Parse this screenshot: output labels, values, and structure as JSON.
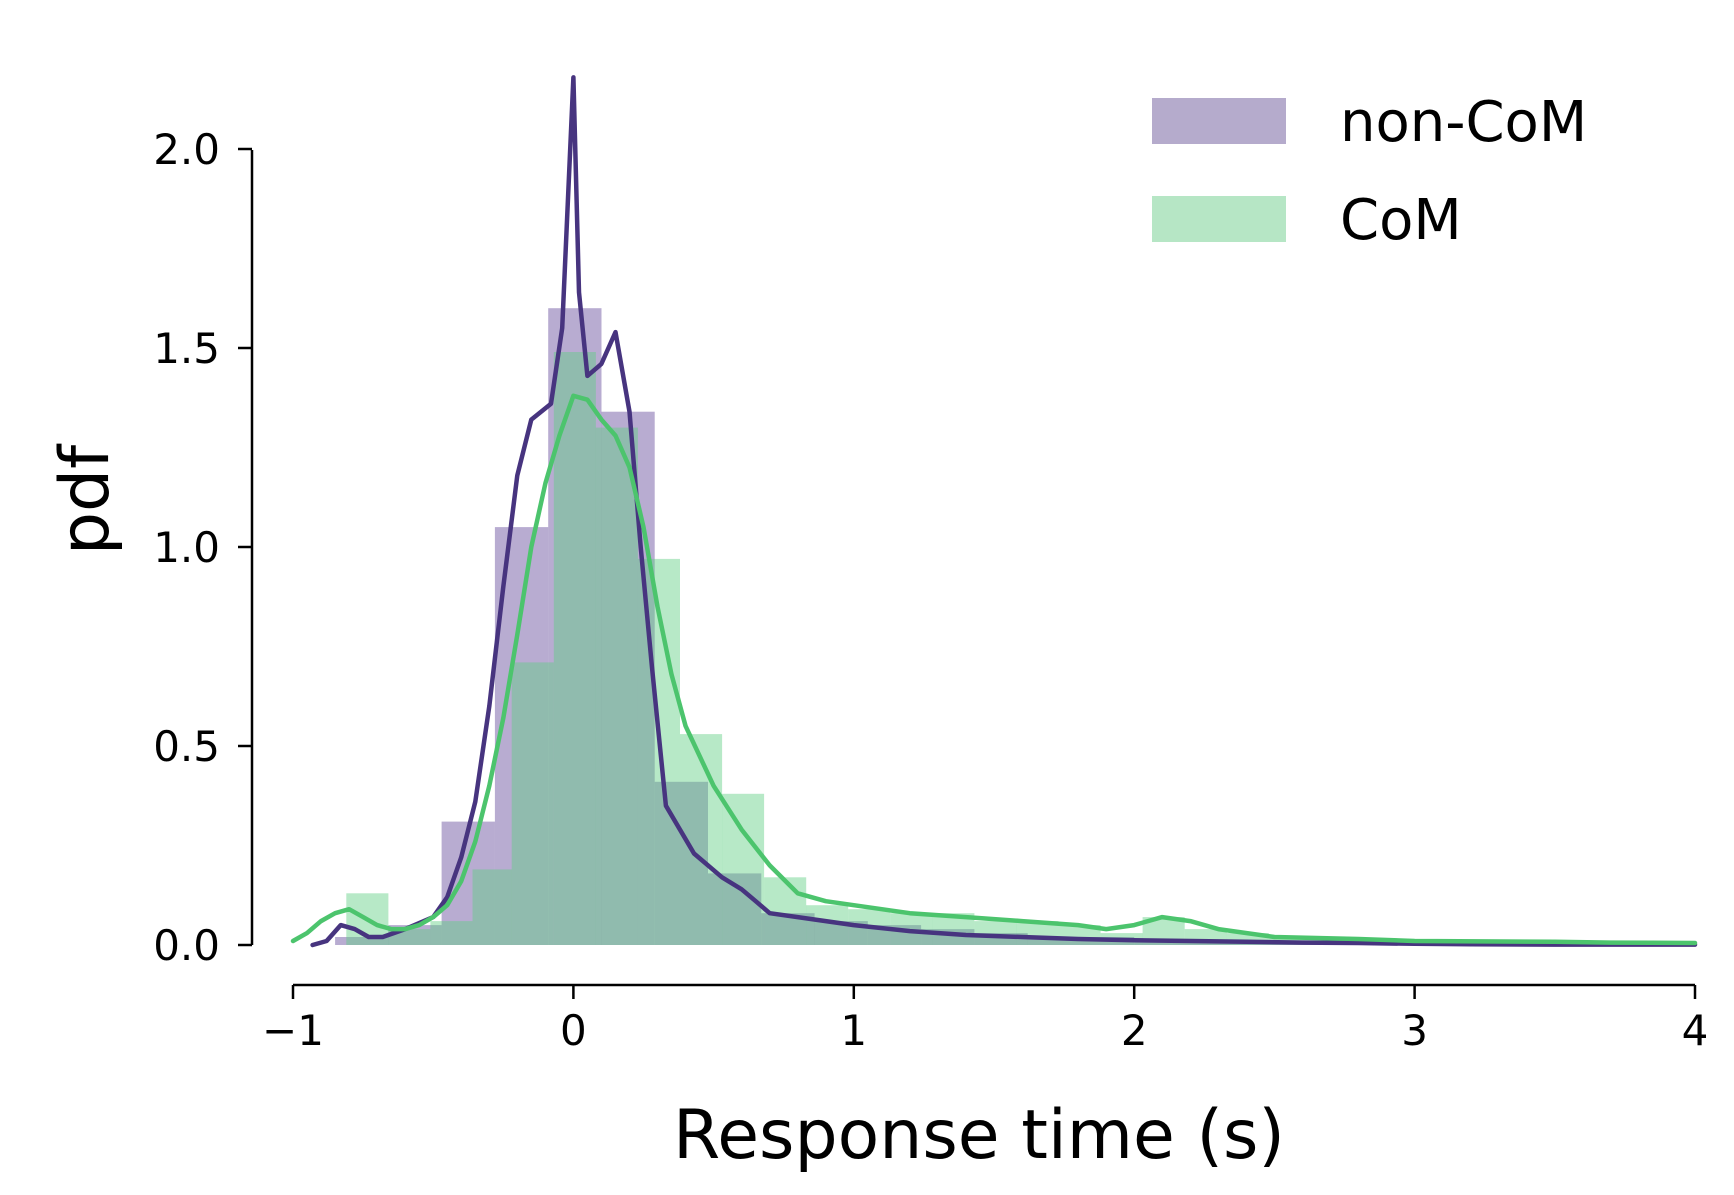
{
  "chart_data": {
    "type": "bar",
    "xlabel": "Response time (s)",
    "ylabel": "pdf",
    "xlim": [
      -1,
      4
    ],
    "ylim": [
      0,
      2.2
    ],
    "xticks": [
      -1,
      0,
      1,
      2,
      3,
      4
    ],
    "xtick_labels": [
      "−1",
      "0",
      "1",
      "2",
      "3",
      "4"
    ],
    "yticks": [
      0.0,
      0.5,
      1.0,
      1.5,
      2.0
    ],
    "ytick_labels": [
      "0.0",
      "0.5",
      "1.0",
      "1.5",
      "2.0"
    ],
    "legend_position": "top-right",
    "colors": {
      "noncom_hist": "#b5abcc",
      "com_hist": "#b6e6c5",
      "overlap_hist": "#8bb5a6",
      "noncom_line": "#47347f",
      "com_line": "#4cc46d",
      "axis": "#000000"
    },
    "series": [
      {
        "name": "non-CoM",
        "kind": "histogram",
        "bins": [
          [
            -0.85,
            -0.66,
            0.02
          ],
          [
            -0.66,
            -0.47,
            0.05
          ],
          [
            -0.47,
            -0.28,
            0.31
          ],
          [
            -0.28,
            -0.09,
            1.05
          ],
          [
            -0.09,
            0.1,
            1.6
          ],
          [
            0.1,
            0.29,
            1.34
          ],
          [
            0.29,
            0.48,
            0.41
          ],
          [
            0.48,
            0.67,
            0.18
          ],
          [
            0.67,
            0.86,
            0.08
          ],
          [
            0.86,
            1.05,
            0.06
          ],
          [
            1.05,
            1.24,
            0.05
          ],
          [
            1.24,
            1.43,
            0.04
          ],
          [
            1.43,
            1.62,
            0.03
          ],
          [
            1.62,
            1.81,
            0.02
          ],
          [
            1.81,
            2.0,
            0.02
          ],
          [
            2.0,
            2.19,
            0.01
          ],
          [
            2.19,
            2.38,
            0.01
          ],
          [
            2.38,
            2.57,
            0.01
          ],
          [
            2.57,
            2.76,
            0.005
          ],
          [
            2.76,
            2.95,
            0.005
          ]
        ],
        "density_x": [
          -0.93,
          -0.88,
          -0.83,
          -0.78,
          -0.73,
          -0.68,
          -0.6,
          -0.5,
          -0.45,
          -0.4,
          -0.35,
          -0.3,
          -0.25,
          -0.2,
          -0.15,
          -0.08,
          -0.04,
          0.0,
          0.02,
          0.05,
          0.1,
          0.15,
          0.2,
          0.24,
          0.28,
          0.33,
          0.43,
          0.53,
          0.6,
          0.65,
          0.7,
          0.8,
          1.0,
          1.2,
          1.4,
          1.6,
          1.8,
          2.0,
          2.2,
          2.4,
          2.6,
          2.8,
          3.0,
          3.2,
          3.5,
          3.75,
          4.0
        ],
        "density_y": [
          0.0,
          0.01,
          0.05,
          0.04,
          0.02,
          0.02,
          0.04,
          0.07,
          0.12,
          0.22,
          0.36,
          0.6,
          0.9,
          1.18,
          1.32,
          1.36,
          1.55,
          2.18,
          1.64,
          1.43,
          1.46,
          1.54,
          1.34,
          1.0,
          0.7,
          0.35,
          0.23,
          0.17,
          0.14,
          0.11,
          0.08,
          0.07,
          0.05,
          0.035,
          0.025,
          0.02,
          0.015,
          0.012,
          0.01,
          0.008,
          0.006,
          0.005,
          0.003,
          0.002,
          0.001,
          0.001,
          0.001
        ]
      },
      {
        "name": "CoM",
        "kind": "histogram",
        "bins": [
          [
            -0.81,
            -0.66,
            0.13
          ],
          [
            -0.66,
            -0.51,
            0.04
          ],
          [
            -0.51,
            -0.36,
            0.06
          ],
          [
            -0.36,
            -0.22,
            0.19
          ],
          [
            -0.22,
            -0.07,
            0.71
          ],
          [
            -0.07,
            0.08,
            1.49
          ],
          [
            0.08,
            0.23,
            1.3
          ],
          [
            0.23,
            0.38,
            0.97
          ],
          [
            0.38,
            0.53,
            0.53
          ],
          [
            0.53,
            0.68,
            0.38
          ],
          [
            0.68,
            0.83,
            0.17
          ],
          [
            0.83,
            0.98,
            0.1
          ],
          [
            0.98,
            1.13,
            0.09
          ],
          [
            1.13,
            1.28,
            0.08
          ],
          [
            1.28,
            1.43,
            0.08
          ],
          [
            1.43,
            1.58,
            0.06
          ],
          [
            1.58,
            1.73,
            0.06
          ],
          [
            1.73,
            1.88,
            0.05
          ],
          [
            1.88,
            2.03,
            0.03
          ],
          [
            2.03,
            2.18,
            0.07
          ],
          [
            2.18,
            2.33,
            0.04
          ],
          [
            2.33,
            2.48,
            0.03
          ],
          [
            2.48,
            2.63,
            0.02
          ],
          [
            2.63,
            2.78,
            0.02
          ],
          [
            2.78,
            2.93,
            0.01
          ],
          [
            2.93,
            3.08,
            0.01
          ]
        ],
        "density_x": [
          -1.0,
          -0.95,
          -0.9,
          -0.85,
          -0.8,
          -0.75,
          -0.7,
          -0.65,
          -0.6,
          -0.55,
          -0.5,
          -0.45,
          -0.4,
          -0.35,
          -0.3,
          -0.25,
          -0.2,
          -0.15,
          -0.1,
          -0.05,
          0.0,
          0.05,
          0.1,
          0.15,
          0.2,
          0.25,
          0.3,
          0.35,
          0.4,
          0.5,
          0.6,
          0.7,
          0.8,
          0.9,
          1.0,
          1.1,
          1.2,
          1.4,
          1.6,
          1.8,
          1.9,
          2.0,
          2.1,
          2.2,
          2.3,
          2.5,
          2.8,
          3.0,
          3.5,
          3.7,
          4.0
        ],
        "density_y": [
          0.01,
          0.03,
          0.06,
          0.08,
          0.09,
          0.07,
          0.05,
          0.04,
          0.04,
          0.05,
          0.07,
          0.1,
          0.16,
          0.26,
          0.4,
          0.57,
          0.78,
          1.0,
          1.16,
          1.28,
          1.38,
          1.37,
          1.32,
          1.28,
          1.2,
          1.05,
          0.85,
          0.68,
          0.55,
          0.4,
          0.29,
          0.2,
          0.13,
          0.11,
          0.1,
          0.09,
          0.08,
          0.07,
          0.06,
          0.05,
          0.04,
          0.05,
          0.07,
          0.06,
          0.04,
          0.02,
          0.015,
          0.01,
          0.008,
          0.006,
          0.005
        ]
      }
    ]
  }
}
